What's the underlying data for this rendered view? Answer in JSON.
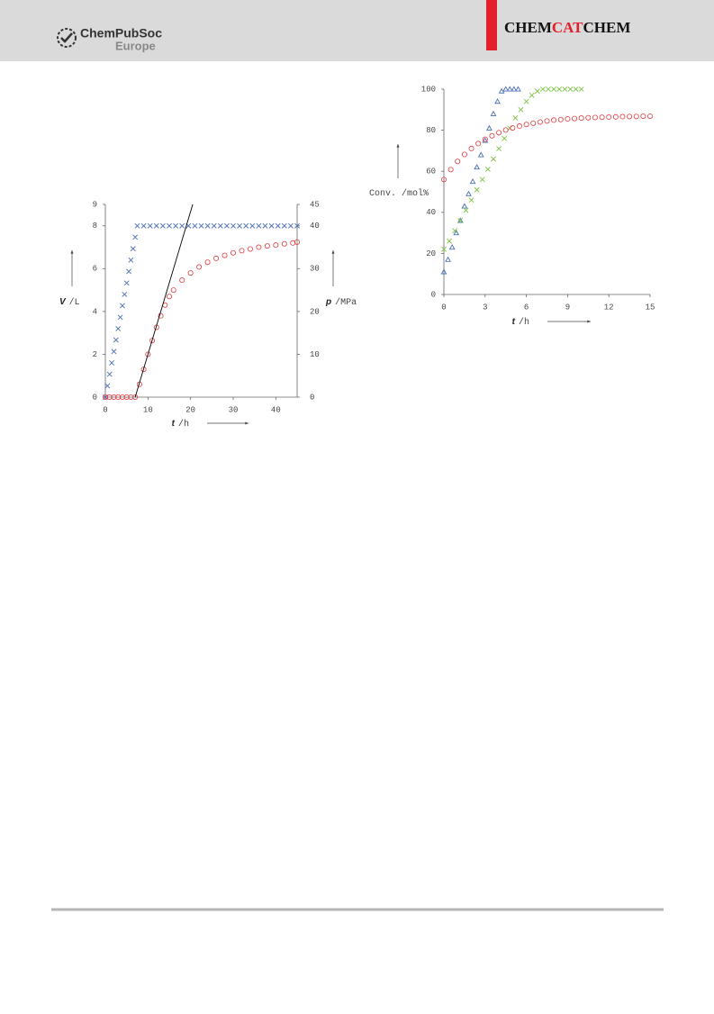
{
  "header": {
    "logo_name": "ChemPubSoc",
    "logo_region": "Europe",
    "journal_parts": [
      "CHEM",
      "CAT",
      "CHEM"
    ]
  },
  "chart_data": [
    {
      "type": "scatter",
      "xlabel_symbol": "t",
      "xlabel_unit": "/h",
      "ylabel_symbol": "V",
      "ylabel_unit": "/L",
      "y2label_symbol": "p",
      "y2label_unit": "/MPa",
      "xlim": [
        0,
        45
      ],
      "xticks": [
        0,
        10,
        20,
        30,
        40
      ],
      "ylim": [
        0,
        9
      ],
      "yticks": [
        0,
        2,
        4,
        6,
        8,
        9
      ],
      "y2lim": [
        0,
        45
      ],
      "y2ticks": [
        0,
        10,
        20,
        30,
        40,
        45
      ],
      "series": [
        {
          "color": "#4a6fb5",
          "marker": "cross",
          "x": [
            0,
            0.5,
            1,
            1.5,
            2,
            2.5,
            3,
            3.5,
            4,
            4.5,
            5,
            5.5,
            6,
            6.5,
            7,
            7.5,
            9,
            10.5,
            12,
            13.5,
            15,
            16.5,
            18,
            19.5,
            21,
            22.5,
            24,
            25.5,
            27,
            28.5,
            30,
            31.5,
            33,
            34.5,
            36,
            37.5,
            39,
            40.5,
            42,
            43.5,
            45
          ],
          "values": [
            0,
            0.53,
            1.07,
            1.6,
            2.13,
            2.67,
            3.2,
            3.73,
            4.27,
            4.8,
            5.33,
            5.87,
            6.4,
            6.93,
            7.47,
            8,
            8,
            8,
            8,
            8,
            8,
            8,
            8,
            8,
            8,
            8,
            8,
            8,
            8,
            8,
            8,
            8,
            8,
            8,
            8,
            8,
            8,
            8,
            8,
            8,
            8
          ]
        },
        {
          "color": "#e0393e",
          "marker": "circle",
          "axis": "y2",
          "x": [
            0,
            1,
            2,
            3,
            4,
            5,
            6,
            7,
            8,
            9,
            10,
            11,
            12,
            13,
            14,
            15,
            16,
            18,
            20,
            22,
            24,
            26,
            28,
            30,
            32,
            34,
            36,
            38,
            40,
            42,
            44,
            45
          ],
          "values": [
            0,
            0,
            0,
            0,
            0,
            0,
            0,
            0,
            3,
            6.5,
            10,
            13.2,
            16.3,
            19,
            21.5,
            23.5,
            25,
            27.3,
            29,
            30.4,
            31.5,
            32.4,
            33.1,
            33.7,
            34.2,
            34.6,
            35,
            35.3,
            35.5,
            35.8,
            36,
            36.2
          ]
        },
        {
          "color": "#000000",
          "marker": "line",
          "axis": "y2",
          "x": [
            7,
            20.5
          ],
          "values": [
            0,
            45
          ]
        }
      ]
    },
    {
      "type": "scatter",
      "xlabel_symbol": "t",
      "xlabel_unit": "/h",
      "ylabel": "Conv. /mol%",
      "xlim": [
        0,
        15
      ],
      "xticks": [
        0,
        3,
        6,
        9,
        12,
        15
      ],
      "ylim": [
        0,
        100
      ],
      "yticks": [
        0,
        20,
        40,
        60,
        80,
        100
      ],
      "series": [
        {
          "color": "#4a6fb5",
          "marker": "triangle",
          "x": [
            0,
            0.3,
            0.6,
            0.9,
            1.2,
            1.5,
            1.8,
            2.1,
            2.4,
            2.7,
            3.0,
            3.3,
            3.6,
            3.9,
            4.2,
            4.5,
            4.8,
            5.1,
            5.4
          ],
          "values": [
            11,
            17,
            23,
            30,
            36,
            43,
            49,
            55,
            62,
            68,
            75,
            81,
            88,
            94,
            99,
            100,
            100,
            100,
            100
          ]
        },
        {
          "color": "#7cc242",
          "marker": "cross",
          "x": [
            0,
            0.4,
            0.8,
            1.2,
            1.6,
            2,
            2.4,
            2.8,
            3.2,
            3.6,
            4,
            4.4,
            4.8,
            5.2,
            5.6,
            6,
            6.4,
            6.8,
            7.2,
            7.6,
            8,
            8.4,
            8.8,
            9.2,
            9.6,
            10
          ],
          "values": [
            22,
            26,
            31,
            36,
            41,
            46,
            51,
            56,
            61,
            66,
            71,
            76,
            81,
            86,
            90,
            94,
            97,
            99,
            100,
            100,
            100,
            100,
            100,
            100,
            100,
            100
          ]
        },
        {
          "color": "#e0393e",
          "marker": "circle",
          "x": [
            0,
            0.5,
            1,
            1.5,
            2,
            2.5,
            3,
            3.5,
            4,
            4.5,
            5,
            5.5,
            6,
            6.5,
            7,
            7.5,
            8,
            8.5,
            9,
            9.5,
            10,
            10.5,
            11,
            11.5,
            12,
            12.5,
            13,
            13.5,
            14,
            14.5,
            15
          ],
          "values": [
            56,
            60.8,
            64.8,
            68.2,
            71.1,
            73.5,
            75.6,
            77.3,
            78.8,
            80.1,
            81.1,
            82,
            82.8,
            83.4,
            84,
            84.5,
            84.9,
            85.2,
            85.5,
            85.7,
            85.9,
            86.1,
            86.2,
            86.3,
            86.4,
            86.5,
            86.6,
            86.7,
            86.7,
            86.8,
            86.8
          ]
        }
      ]
    }
  ]
}
